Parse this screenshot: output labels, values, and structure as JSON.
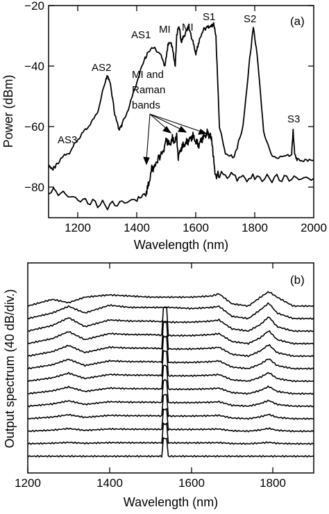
{
  "panel_a": {
    "label": "(a)",
    "ylabel": "Power (dBm)",
    "xlabel": "Wavelength (nm)",
    "x_ticks": [
      "1200",
      "1400",
      "1600",
      "1800",
      "2000"
    ],
    "y_ticks": [
      "−80",
      "−60",
      "−40",
      "−20"
    ],
    "annotations": {
      "as3": "AS3",
      "as2": "AS2",
      "as1": "AS1",
      "mi1": "MI",
      "mi2": "MI",
      "s1": "S1",
      "s2": "S2",
      "s3": "S3",
      "mi_raman_1": "MI and",
      "mi_raman_2": "Raman",
      "mi_raman_3": "bands"
    }
  },
  "panel_b": {
    "label": "(b)",
    "ylabel": "Output spectrum (40 dB/div.)",
    "xlabel": "Wavelength (nm)",
    "x_ticks": [
      "1200",
      "1400",
      "1600",
      "1800"
    ]
  },
  "chart_data": [
    {
      "type": "line",
      "panel": "(a)",
      "xlabel": "Wavelength (nm)",
      "ylabel": "Power (dBm)",
      "xlim": [
        1100,
        2000
      ],
      "ylim": [
        -90,
        -20
      ],
      "series": [
        {
          "x": [
            1100,
            1115,
            1130,
            1150,
            1175,
            1200,
            1225,
            1250,
            1270,
            1290,
            1300,
            1310,
            1325,
            1340,
            1350,
            1375,
            1400,
            1425,
            1440,
            1460,
            1480,
            1495,
            1505,
            1515,
            1522,
            1530,
            1535,
            1540,
            1545,
            1550,
            1560,
            1575,
            1590,
            1600,
            1610,
            1625,
            1640,
            1650,
            1660,
            1668,
            1680,
            1700,
            1730,
            1760,
            1780,
            1795,
            1810,
            1830,
            1860,
            1900,
            1925,
            1930,
            1935,
            1945,
            1970,
            2000
          ],
          "y": [
            -73,
            -74,
            -72,
            -70,
            -68,
            -64,
            -61,
            -58,
            -54,
            -46,
            -43,
            -46,
            -56,
            -61,
            -59,
            -53,
            -45,
            -38,
            -35,
            -34,
            -36,
            -40,
            -33,
            -32,
            -35,
            -40,
            -30,
            -27,
            -28,
            -32,
            -30,
            -27,
            -32,
            -36,
            -32,
            -28,
            -27,
            -27,
            -26,
            -30,
            -60,
            -69,
            -70,
            -60,
            -40,
            -27,
            -38,
            -62,
            -70,
            -70,
            -69,
            -61,
            -69,
            -71,
            -71,
            -71
          ]
        },
        {
          "x": [
            1100,
            1150,
            1200,
            1250,
            1300,
            1350,
            1400,
            1430,
            1440,
            1450,
            1460,
            1475,
            1490,
            1500,
            1510,
            1520,
            1530,
            1535,
            1540,
            1550,
            1560,
            1570,
            1580,
            1590,
            1600,
            1610,
            1620,
            1630,
            1640,
            1648,
            1655,
            1665,
            1680,
            1720,
            1760,
            1800,
            1850,
            1900,
            1950,
            2000
          ],
          "y": [
            -81,
            -82,
            -84,
            -85,
            -86,
            -85,
            -84,
            -82,
            -79,
            -74,
            -73,
            -70,
            -68,
            -64,
            -66,
            -64,
            -65,
            -63,
            -70,
            -67,
            -66,
            -65,
            -64,
            -63,
            -65,
            -66,
            -64,
            -63,
            -62,
            -63,
            -65,
            -76,
            -76,
            -76,
            -77,
            -77,
            -77,
            -77,
            -77,
            -77
          ]
        }
      ]
    },
    {
      "type": "line",
      "panel": "(b)",
      "xlabel": "Wavelength (nm)",
      "ylabel": "Output spectrum (40 dB/div.)",
      "xlim": [
        1200,
        1900
      ],
      "series": [
        {
          "x": [
            1200,
            1260,
            1300,
            1340,
            1400,
            1450,
            1500,
            1550,
            1600,
            1650,
            1668,
            1700,
            1740,
            1770,
            1790,
            1810,
            1850,
            1900
          ],
          "y": [
            0,
            6,
            3,
            8,
            10,
            9,
            8,
            8,
            8,
            9,
            11,
            2,
            0,
            8,
            13,
            8,
            0,
            0
          ]
        },
        {
          "x": [
            1200,
            1260,
            1300,
            1340,
            1400,
            1450,
            1500,
            1550,
            1600,
            1650,
            1668,
            1700,
            1740,
            1770,
            1790,
            1810,
            1850,
            1900
          ],
          "y": [
            0,
            5,
            11,
            5,
            12,
            10,
            10,
            10,
            9,
            10,
            11,
            2,
            0,
            8,
            14,
            5,
            0,
            0
          ]
        },
        {
          "x": [
            1200,
            1260,
            1300,
            1340,
            1400,
            1450,
            1500,
            1550,
            1600,
            1650,
            1668,
            1700,
            1740,
            1770,
            1790,
            1810,
            1850,
            1900
          ],
          "y": [
            0,
            5,
            12,
            4,
            10,
            9,
            9,
            8,
            8,
            9,
            10,
            2,
            0,
            6,
            13,
            4,
            0,
            0
          ]
        }
      ]
    }
  ]
}
